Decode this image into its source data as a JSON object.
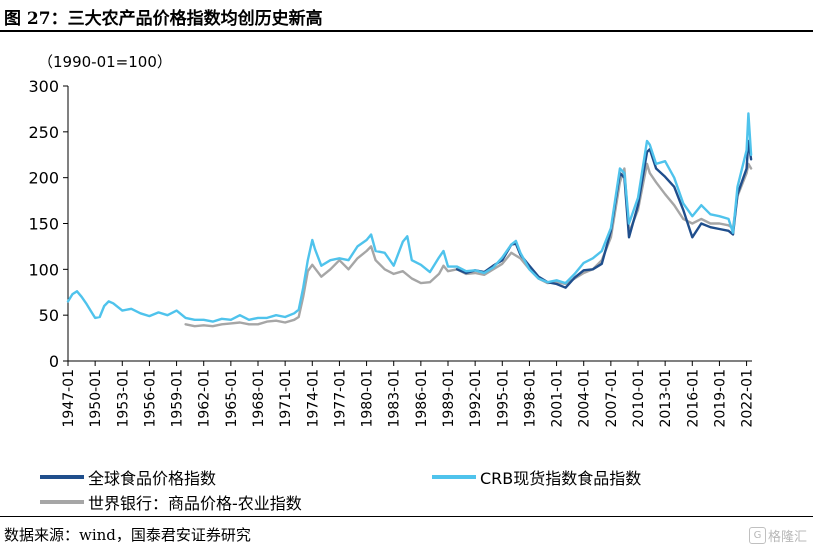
{
  "figure": {
    "title": "图 27：三大农产品价格指数均创历史新高",
    "source": "数据来源：wind，国泰君安证券研究",
    "watermark": "格隆汇"
  },
  "chart_data": {
    "type": "line",
    "ylabel": "（1990-01=100）",
    "xlabel": "",
    "ylim": [
      0,
      300
    ],
    "yticks": [
      0,
      50,
      100,
      150,
      200,
      250,
      300
    ],
    "xlim": [
      1947,
      2022.6
    ],
    "xticks": [
      "1947-01",
      "1950-01",
      "1953-01",
      "1956-01",
      "1959-01",
      "1962-01",
      "1965-01",
      "1968-01",
      "1971-01",
      "1974-01",
      "1977-01",
      "1980-01",
      "1983-01",
      "1986-01",
      "1989-01",
      "1992-01",
      "1995-01",
      "1998-01",
      "2001-01",
      "2004-01",
      "2007-01",
      "2010-01",
      "2013-01",
      "2016-01",
      "2019-01",
      "2022-01"
    ],
    "grid": false,
    "legend_position": "bottom",
    "series": [
      {
        "name": "全球食品价格指数",
        "color": "#1f4e8c",
        "x": [
          1990.0,
          1991.0,
          1992.0,
          1993.0,
          1994.0,
          1995.0,
          1996.0,
          1996.5,
          1997.0,
          1998.0,
          1999.0,
          2000.0,
          2001.0,
          2002.0,
          2003.0,
          2004.0,
          2005.0,
          2006.0,
          2007.0,
          2008.0,
          2008.5,
          2009.0,
          2010.0,
          2011.0,
          2011.3,
          2012.0,
          2013.0,
          2014.0,
          2015.0,
          2016.0,
          2017.0,
          2018.0,
          2019.0,
          2020.0,
          2020.5,
          2021.0,
          2022.0,
          2022.2,
          2022.5
        ],
        "y": [
          100,
          96,
          99,
          97,
          104,
          110,
          127,
          128,
          116,
          104,
          92,
          86,
          84,
          80,
          91,
          99,
          100,
          106,
          142,
          205,
          200,
          135,
          170,
          228,
          231,
          210,
          201,
          190,
          165,
          135,
          150,
          146,
          144,
          142,
          138,
          182,
          210,
          240,
          220
        ]
      },
      {
        "name": "CRB现货指数食品指数",
        "color": "#4fc3ec",
        "x": [
          1947.0,
          1947.5,
          1948.0,
          1948.5,
          1949.0,
          1949.5,
          1950.0,
          1950.5,
          1951.0,
          1951.5,
          1952.0,
          1953.0,
          1954.0,
          1955.0,
          1956.0,
          1957.0,
          1958.0,
          1959.0,
          1960.0,
          1961.0,
          1962.0,
          1963.0,
          1964.0,
          1965.0,
          1966.0,
          1967.0,
          1968.0,
          1969.0,
          1970.0,
          1971.0,
          1972.0,
          1972.5,
          1973.0,
          1973.5,
          1974.0,
          1974.3,
          1975.0,
          1976.0,
          1977.0,
          1978.0,
          1979.0,
          1980.0,
          1980.5,
          1981.0,
          1982.0,
          1983.0,
          1984.0,
          1984.5,
          1985.0,
          1986.0,
          1987.0,
          1988.0,
          1988.5,
          1989.0,
          1990.0,
          1991.0,
          1992.0,
          1993.0,
          1994.0,
          1995.0,
          1996.0,
          1996.5,
          1997.0,
          1998.0,
          1999.0,
          2000.0,
          2001.0,
          2002.0,
          2003.0,
          2004.0,
          2005.0,
          2006.0,
          2007.0,
          2008.0,
          2008.5,
          2009.0,
          2010.0,
          2011.0,
          2011.3,
          2012.0,
          2013.0,
          2014.0,
          2015.0,
          2016.0,
          2017.0,
          2018.0,
          2019.0,
          2020.0,
          2020.5,
          2021.0,
          2022.0,
          2022.2,
          2022.5
        ],
        "y": [
          65,
          73,
          76,
          70,
          63,
          55,
          47,
          48,
          60,
          65,
          63,
          55,
          57,
          52,
          49,
          53,
          50,
          55,
          47,
          45,
          45,
          43,
          46,
          45,
          50,
          45,
          47,
          47,
          50,
          48,
          52,
          56,
          80,
          110,
          132,
          122,
          104,
          110,
          112,
          110,
          125,
          132,
          138,
          120,
          118,
          104,
          130,
          136,
          110,
          105,
          97,
          113,
          120,
          103,
          103,
          98,
          99,
          96,
          102,
          113,
          127,
          131,
          118,
          100,
          90,
          86,
          88,
          85,
          95,
          107,
          112,
          120,
          145,
          210,
          205,
          150,
          178,
          240,
          236,
          215,
          218,
          200,
          172,
          158,
          170,
          160,
          158,
          155,
          140,
          190,
          230,
          270,
          225
        ]
      },
      {
        "name": "世界银行：商品价格-农业指数",
        "color": "#a6a6a6",
        "x": [
          1960.0,
          1961.0,
          1962.0,
          1963.0,
          1964.0,
          1965.0,
          1966.0,
          1967.0,
          1968.0,
          1969.0,
          1970.0,
          1971.0,
          1972.0,
          1972.5,
          1973.0,
          1973.5,
          1974.0,
          1975.0,
          1976.0,
          1977.0,
          1978.0,
          1979.0,
          1980.0,
          1980.5,
          1981.0,
          1982.0,
          1983.0,
          1984.0,
          1985.0,
          1986.0,
          1987.0,
          1988.0,
          1988.5,
          1989.0,
          1990.0,
          1991.0,
          1992.0,
          1993.0,
          1994.0,
          1995.0,
          1996.0,
          1997.0,
          1998.0,
          1999.0,
          2000.0,
          2001.0,
          2002.0,
          2003.0,
          2004.0,
          2005.0,
          2006.0,
          2007.0,
          2008.0,
          2008.5,
          2009.0,
          2010.0,
          2011.0,
          2011.3,
          2012.0,
          2013.0,
          2014.0,
          2015.0,
          2016.0,
          2017.0,
          2018.0,
          2019.0,
          2020.0,
          2020.5,
          2021.0,
          2022.0,
          2022.2,
          2022.5
        ],
        "y": [
          40,
          38,
          39,
          38,
          40,
          41,
          42,
          40,
          40,
          43,
          44,
          42,
          45,
          48,
          70,
          98,
          105,
          92,
          100,
          110,
          100,
          112,
          120,
          125,
          110,
          100,
          95,
          98,
          90,
          85,
          86,
          95,
          104,
          98,
          100,
          95,
          96,
          94,
          100,
          106,
          118,
          112,
          100,
          90,
          85,
          86,
          84,
          90,
          96,
          100,
          110,
          135,
          195,
          210,
          140,
          165,
          215,
          205,
          195,
          182,
          170,
          155,
          150,
          155,
          150,
          150,
          148,
          145,
          180,
          205,
          215,
          210
        ]
      }
    ]
  }
}
